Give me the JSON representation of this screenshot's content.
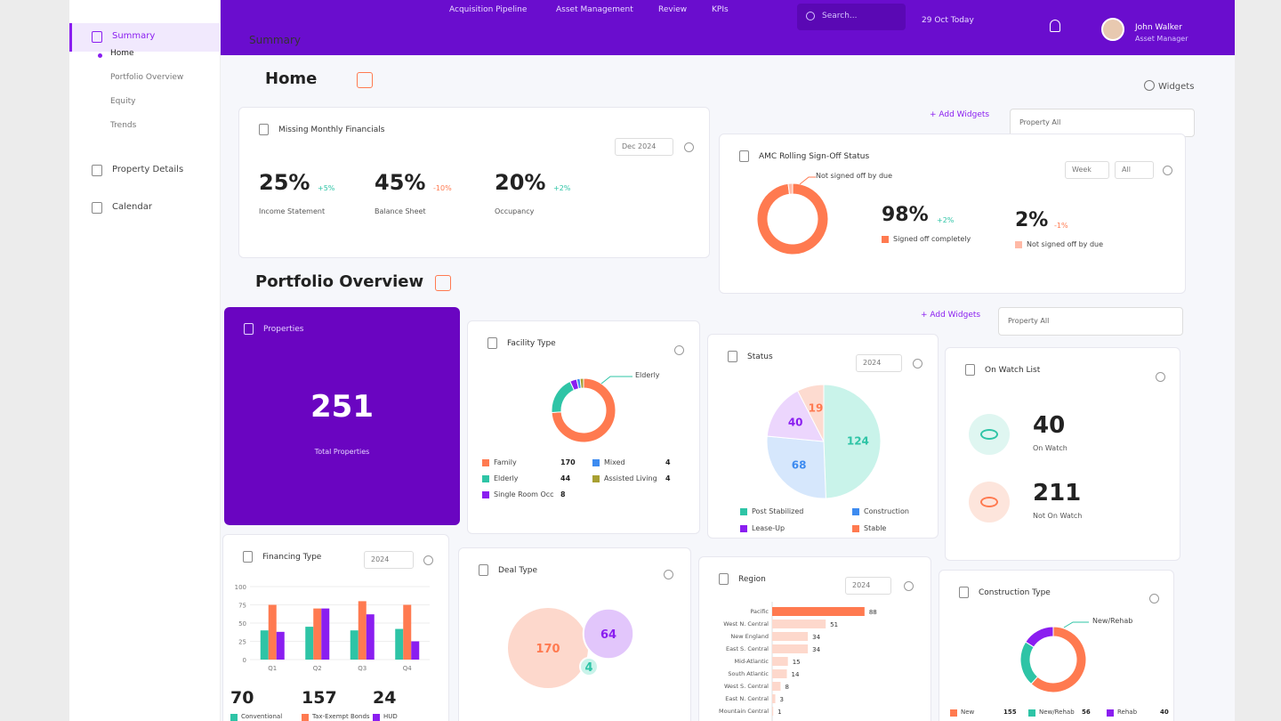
{
  "topbar": {
    "menu": [
      "Acquisition Pipeline",
      "Asset Management",
      "Review",
      "KPIs"
    ],
    "search": "Search...",
    "date": "29 Oct Today",
    "user_name": "John Walker",
    "user_role": "Asset Manager"
  },
  "sidebar": {
    "items": [
      {
        "label": "Summary",
        "children": [
          "Home",
          "Portfolio Overview",
          "Equity",
          "Trends"
        ]
      },
      {
        "label": "Property Details"
      },
      {
        "label": "Calendar"
      }
    ]
  },
  "page_title": "Summary",
  "widgets_link": "Widgets",
  "home": {
    "title": "Home",
    "add_widgets": "+ Add Widgets",
    "filter": "Property All",
    "financials": {
      "title": "Missing Monthly Financials",
      "period": "Dec 2024",
      "kpis": [
        {
          "value": "25%",
          "change": "+5%",
          "label": "Income Statement"
        },
        {
          "value": "45%",
          "change": "-10%",
          "label": "Balance Sheet"
        },
        {
          "value": "20%",
          "change": "+2%",
          "label": "Occupancy"
        }
      ]
    },
    "amc": {
      "title": "AMC Rolling Sign-Off Status",
      "filters": [
        "Week",
        "All"
      ],
      "changes": [
        "+2%",
        "-1%"
      ],
      "chart": {
        "type": "donut",
        "categories": [
          "Signed off completely",
          "Not signed off by due"
        ],
        "values": [
          98,
          2
        ],
        "value_labels": [
          "98%",
          "2%"
        ],
        "colors": [
          "#ff7a50",
          "#ffb9a6"
        ]
      }
    }
  },
  "portfolio": {
    "title": "Portfolio Overview",
    "add_widgets": "+ Add Widgets",
    "filter": "Property All",
    "properties": {
      "title": "Properties",
      "value": 251,
      "label": "Total Properties"
    },
    "facility": {
      "title": "Facility Type",
      "chart": {
        "type": "donut",
        "categories": [
          "Family",
          "Elderly",
          "Single Room Occ",
          "Mixed",
          "Assisted Living"
        ],
        "values": [
          170,
          44,
          8,
          4,
          4
        ],
        "colors": [
          "#ff7a50",
          "#2ec4a6",
          "#8a1ef0",
          "#3d8bf0",
          "#a8a032"
        ]
      }
    },
    "status": {
      "title": "Status",
      "filter": "2024",
      "chart": {
        "type": "pie",
        "categories": [
          "Post Stabilized",
          "Construction",
          "Lease-Up",
          "Stable"
        ],
        "values": [
          124,
          68,
          40,
          19
        ],
        "colors": [
          "#c9f3ea",
          "#d6e7fc",
          "#ecd6fd",
          "#fddbd0"
        ],
        "label_colors": [
          "#2ec4a6",
          "#3d8bf0",
          "#8a1ef0",
          "#ff7a50"
        ]
      }
    },
    "watch": {
      "title": "On Watch List",
      "items": [
        {
          "value": 40,
          "label": "On Watch"
        },
        {
          "value": 211,
          "label": "Not On Watch"
        }
      ]
    },
    "financing": {
      "title": "Financing Type",
      "filter": "2024",
      "chart": {
        "type": "bar",
        "categories": [
          "Q1",
          "Q2",
          "Q3",
          "Q4"
        ],
        "ylim": [
          0,
          100
        ],
        "yticks": [
          0,
          25,
          50,
          75,
          100
        ],
        "series": [
          {
            "name": "Conventional",
            "color": "#2ec4a6",
            "values": [
              40,
              45,
              40,
              42
            ]
          },
          {
            "name": "Tax-Exempt Bonds",
            "color": "#ff7a50",
            "values": [
              75,
              70,
              80,
              75
            ]
          },
          {
            "name": "HUD",
            "color": "#8a1ef0",
            "values": [
              38,
              70,
              62,
              25
            ]
          }
        ],
        "totals": [
          70,
          157,
          24
        ]
      }
    },
    "deal": {
      "title": "Deal Type",
      "chart": {
        "type": "bubble",
        "values": [
          170,
          64,
          4
        ],
        "colors": [
          "#fdd8cc",
          "#e2c6fb",
          "#c9f3ea"
        ],
        "label_colors": [
          "#ff7a50",
          "#8a1ef0",
          "#2ec4a6"
        ]
      }
    },
    "region": {
      "title": "Region",
      "filter": "2024",
      "chart": {
        "type": "hbar",
        "categories": [
          "Pacific",
          "West N. Central",
          "New England",
          "East S. Central",
          "Mid-Atlantic",
          "South Atlantic",
          "West S. Central",
          "East N. Central",
          "Mountain Central"
        ],
        "values": [
          88,
          51,
          34,
          34,
          15,
          14,
          8,
          3,
          1
        ],
        "xlim": [
          0,
          100
        ],
        "colors": [
          "#ff7a50",
          "#fdd8cc"
        ]
      }
    },
    "construction": {
      "title": "Construction Type",
      "chart": {
        "type": "donut",
        "categories": [
          "New",
          "New/Rehab",
          "Rehab"
        ],
        "values": [
          155,
          56,
          40
        ],
        "colors": [
          "#ff7a50",
          "#2ec4a6",
          "#8a1ef0"
        ]
      }
    }
  }
}
